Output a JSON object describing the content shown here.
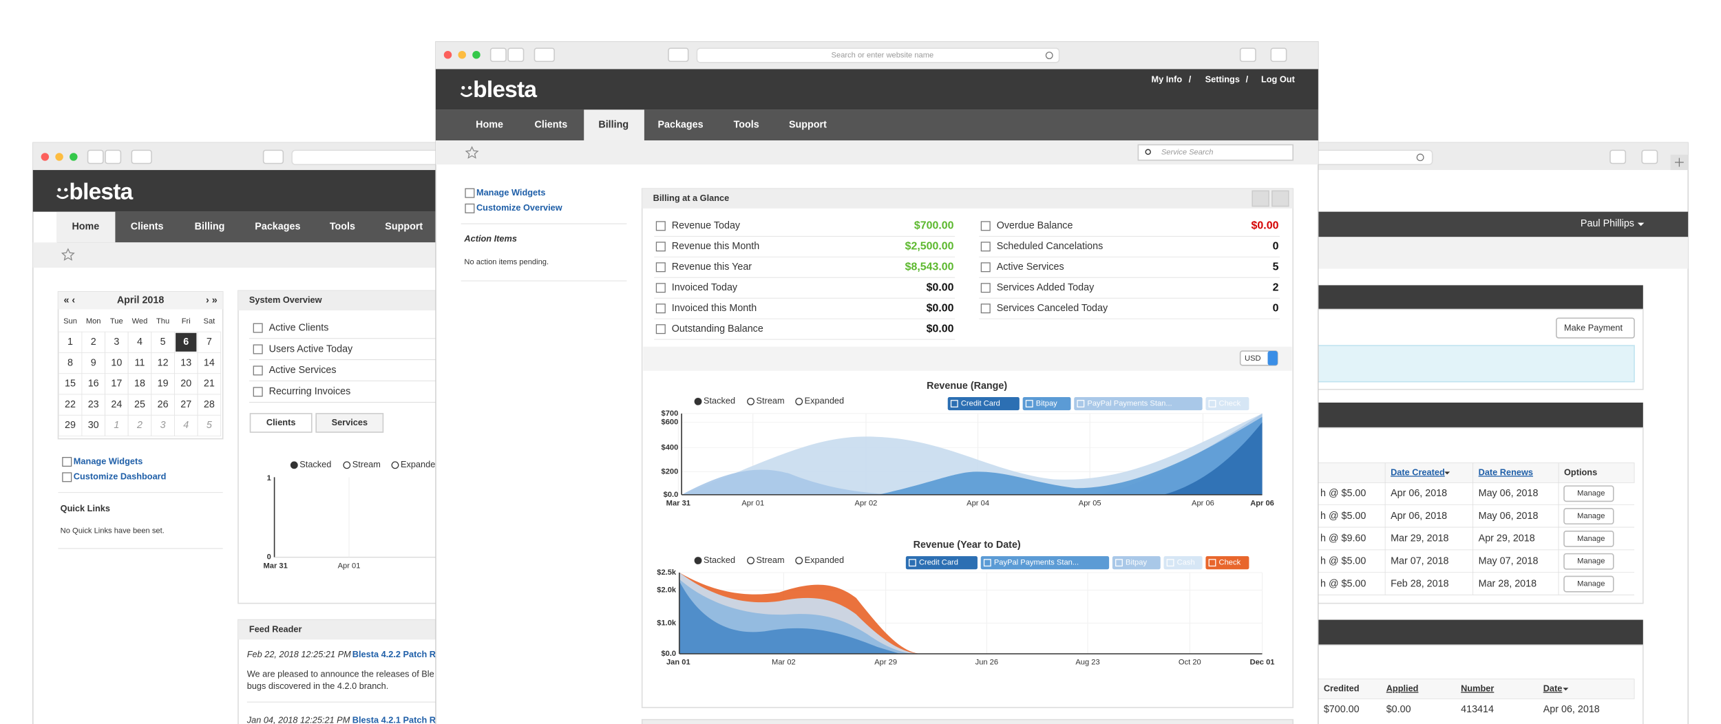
{
  "left_window": {
    "logo": "blesta",
    "nav": [
      "Home",
      "Clients",
      "Billing",
      "Packages",
      "Tools",
      "Support"
    ],
    "calendar": {
      "prev": "« ‹",
      "month": "April 2018",
      "next": "› »",
      "weekdays": [
        "Sun",
        "Mon",
        "Tue",
        "Wed",
        "Thu",
        "Fri",
        "Sat"
      ],
      "weeks": [
        [
          1,
          2,
          3,
          4,
          5,
          6,
          7
        ],
        [
          8,
          9,
          10,
          11,
          12,
          13,
          14
        ],
        [
          15,
          16,
          17,
          18,
          19,
          20,
          21
        ],
        [
          22,
          23,
          24,
          25,
          26,
          27,
          28
        ],
        [
          29,
          30,
          1,
          2,
          3,
          4,
          5
        ]
      ]
    },
    "system_overview": {
      "title": "System Overview",
      "items": [
        "Active Clients",
        "Users Active Today",
        "Active Services",
        "Recurring Invoices"
      ],
      "tabs": [
        "Clients",
        "Services"
      ],
      "chart_modes": [
        "Stacked",
        "Stream",
        "Expanded"
      ],
      "y_labels": [
        "1",
        "0"
      ],
      "x_labels": [
        "Mar 31",
        "Apr 01"
      ]
    },
    "sidebar": {
      "links": [
        "Manage Widgets",
        "Customize Dashboard"
      ],
      "quick_links_title": "Quick Links",
      "quick_links_empty": "No Quick Links have been set."
    },
    "feed_reader": {
      "title": "Feed Reader",
      "entries": [
        {
          "date": "Feb 22, 2018 12:25:21 PM",
          "link": "Blesta 4.2.2 Patch R",
          "text": [
            "We are pleased to announce the releases of Ble",
            "bugs discovered in the 4.2.0 branch."
          ]
        },
        {
          "date": "Jan 04, 2018 12:25:21 PM",
          "link": "Blesta 4.2.1 Patch Re"
        }
      ]
    }
  },
  "right_window": {
    "user": "Paul Phillips",
    "make_payment": "Make Payment",
    "services_table": {
      "headers": [
        "Date Created",
        "Date Renews",
        "Options"
      ],
      "rows": [
        [
          "h @ $5.00",
          "Apr 06, 2018",
          "May 06, 2018",
          "Manage"
        ],
        [
          "h @ $5.00",
          "Apr 06, 2018",
          "May 06, 2018",
          "Manage"
        ],
        [
          "h @ $9.60",
          "Mar 29, 2018",
          "Apr 29, 2018",
          "Manage"
        ],
        [
          "h @ $5.00",
          "Mar 07, 2018",
          "May 07, 2018",
          "Manage"
        ],
        [
          "h @ $5.00",
          "Feb 28, 2018",
          "Mar 28, 2018",
          "Manage"
        ]
      ]
    },
    "transactions_table": {
      "headers": [
        "Credited",
        "Applied",
        "Number",
        "Date"
      ],
      "rows": [
        [
          "$700.00",
          "$0.00",
          "413414",
          "Apr 06, 2018"
        ]
      ]
    }
  },
  "front_window": {
    "address_placeholder": "Search or enter website name",
    "logo": "blesta",
    "top_links": [
      "My Info",
      "/",
      "Settings",
      "/",
      "Log Out"
    ],
    "nav": [
      "Home",
      "Clients",
      "Billing",
      "Packages",
      "Tools",
      "Support"
    ],
    "search_placeholder": "Service Search",
    "sidebar": {
      "links": [
        "Manage Widgets",
        "Customize Overview"
      ],
      "action_items_title": "Action Items",
      "action_items_empty": "No action items pending."
    },
    "widget": {
      "title": "Billing at a Glance",
      "left_stats": [
        {
          "label": "Revenue Today",
          "value": "$700.00",
          "color": "#5cb82e"
        },
        {
          "label": "Revenue this Month",
          "value": "$2,500.00",
          "color": "#5cb82e"
        },
        {
          "label": "Revenue this Year",
          "value": "$8,543.00",
          "color": "#5cb82e"
        },
        {
          "label": "Invoiced Today",
          "value": "$0.00",
          "color": "#111111"
        },
        {
          "label": "Invoiced this Month",
          "value": "$0.00",
          "color": "#111111"
        },
        {
          "label": "Outstanding Balance",
          "value": "$0.00",
          "color": "#111111"
        }
      ],
      "right_stats": [
        {
          "label": "Overdue Balance",
          "value": "$0.00",
          "color": "#d40000"
        },
        {
          "label": "Scheduled Cancelations",
          "value": "0",
          "color": "#111111"
        },
        {
          "label": "Active Services",
          "value": "5",
          "color": "#111111"
        },
        {
          "label": "Services Added Today",
          "value": "2",
          "color": "#111111"
        },
        {
          "label": "Services Canceled Today",
          "value": "0",
          "color": "#111111"
        }
      ],
      "currency": "USD"
    },
    "charts": [
      {
        "title": "Revenue (Range)",
        "modes": [
          "Stacked",
          "Stream",
          "Expanded"
        ],
        "series": [
          {
            "name": "Credit Card",
            "color": "#2c6fb3"
          },
          {
            "name": "Bitpay",
            "color": "#5b9bd5"
          },
          {
            "name": "PayPal Payments Stan...",
            "color": "#a9c8e8"
          },
          {
            "name": "Check",
            "color": "#d6e6f5"
          }
        ],
        "y_labels": [
          "$700",
          "$600",
          "$400",
          "$200",
          "$0.0"
        ],
        "x_labels": [
          "Mar 31",
          "Apr 01",
          "Apr 02",
          "Apr 04",
          "Apr 05",
          "Apr 06",
          "Apr 06"
        ]
      },
      {
        "title": "Revenue (Year to Date)",
        "modes": [
          "Stacked",
          "Stream",
          "Expanded"
        ],
        "series": [
          {
            "name": "Credit Card",
            "color": "#2c6fb3"
          },
          {
            "name": "PayPal Payments Stan...",
            "color": "#5b9bd5"
          },
          {
            "name": "Bitpay",
            "color": "#a9c8e8"
          },
          {
            "name": "Cash",
            "color": "#d6e6f5"
          },
          {
            "name": "Check",
            "color": "#e8662c"
          }
        ],
        "y_labels": [
          "$2.5k",
          "$2.0k",
          "$1.0k",
          "$0.0"
        ],
        "x_labels": [
          "Jan 01",
          "Mar 02",
          "Apr 29",
          "Jun 26",
          "Aug 23",
          "Oct 20",
          "Dec 01"
        ]
      }
    ]
  }
}
